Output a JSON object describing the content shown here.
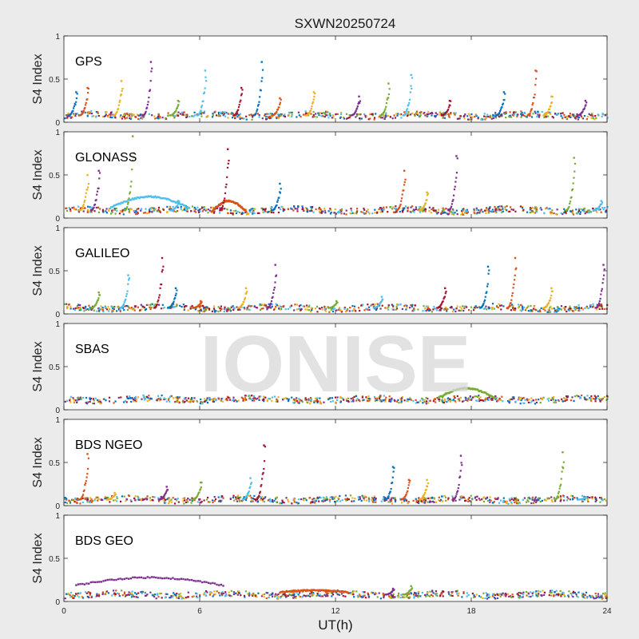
{
  "title": "SXWN20250724",
  "watermark": "IONISE",
  "chart_data": {
    "type": "scatter",
    "title": "SXWN20250724",
    "xlabel": "UT(h)",
    "ylabel": "S4 Index",
    "xlim": [
      0,
      24
    ],
    "ylim": [
      0,
      1
    ],
    "xticks": [
      "0",
      "6",
      "12",
      "18",
      "24"
    ],
    "yticks": [
      "0",
      "0.5",
      "1"
    ],
    "grid": false,
    "palette": [
      "#0072BD",
      "#D95319",
      "#EDB120",
      "#7E2F8E",
      "#77AC30",
      "#4DBEEE",
      "#A2142F"
    ],
    "panels": [
      {
        "label": "GPS",
        "baseline": 0.08,
        "spikes": [
          [
            0.5,
            0.35
          ],
          [
            1.0,
            0.4
          ],
          [
            2.5,
            0.48
          ],
          [
            3.8,
            0.7
          ],
          [
            5.0,
            0.25
          ],
          [
            6.2,
            0.6
          ],
          [
            7.8,
            0.4
          ],
          [
            8.7,
            0.7
          ],
          [
            9.5,
            0.28
          ],
          [
            11.0,
            0.35
          ],
          [
            13.0,
            0.3
          ],
          [
            14.3,
            0.45
          ],
          [
            15.3,
            0.55
          ],
          [
            17.0,
            0.25
          ],
          [
            19.4,
            0.35
          ],
          [
            20.8,
            0.6
          ],
          [
            21.5,
            0.3
          ],
          [
            23.0,
            0.25
          ]
        ]
      },
      {
        "label": "GLONASS",
        "baseline": 0.09,
        "spikes": [
          [
            1.0,
            0.5
          ],
          [
            1.5,
            0.55
          ],
          [
            3.0,
            0.95
          ],
          [
            5.0,
            0.2
          ],
          [
            7.2,
            0.8
          ],
          [
            9.5,
            0.4
          ],
          [
            15.0,
            0.55
          ],
          [
            16.0,
            0.3
          ],
          [
            17.3,
            0.72
          ],
          [
            22.5,
            0.7
          ],
          [
            23.7,
            0.2
          ]
        ],
        "arcs": [
          [
            2.0,
            5.5,
            0.12,
            0.25
          ],
          [
            6.5,
            8.0,
            0.08,
            0.2
          ]
        ]
      },
      {
        "label": "GALILEO",
        "baseline": 0.07,
        "spikes": [
          [
            1.5,
            0.25
          ],
          [
            2.8,
            0.45
          ],
          [
            4.3,
            0.65
          ],
          [
            4.9,
            0.3
          ],
          [
            6.0,
            0.15
          ],
          [
            8.0,
            0.3
          ],
          [
            9.3,
            0.57
          ],
          [
            12.0,
            0.15
          ],
          [
            14.0,
            0.2
          ],
          [
            16.8,
            0.3
          ],
          [
            18.7,
            0.55
          ],
          [
            19.9,
            0.65
          ],
          [
            21.5,
            0.3
          ],
          [
            23.8,
            0.57
          ]
        ]
      },
      {
        "label": "SBAS",
        "baseline": 0.12,
        "spikes": [],
        "arcs": [
          [
            16.5,
            19.0,
            0.14,
            0.25
          ]
        ]
      },
      {
        "label": "BDS NGEO",
        "baseline": 0.07,
        "spikes": [
          [
            1.0,
            0.6
          ],
          [
            2.2,
            0.15
          ],
          [
            4.5,
            0.22
          ],
          [
            6.0,
            0.27
          ],
          [
            8.2,
            0.32
          ],
          [
            8.8,
            0.7
          ],
          [
            14.5,
            0.45
          ],
          [
            15.2,
            0.3
          ],
          [
            16.0,
            0.3
          ],
          [
            17.5,
            0.58
          ],
          [
            22.0,
            0.62
          ],
          [
            23.0,
            0.1
          ]
        ]
      },
      {
        "label": "BDS GEO",
        "baseline": 0.08,
        "spikes": [
          [
            14.5,
            0.15
          ],
          [
            15.3,
            0.18
          ]
        ],
        "arcs": [
          [
            0.5,
            7.0,
            0.19,
            0.28
          ],
          [
            9.5,
            12.5,
            0.11,
            0.13
          ]
        ]
      }
    ]
  }
}
